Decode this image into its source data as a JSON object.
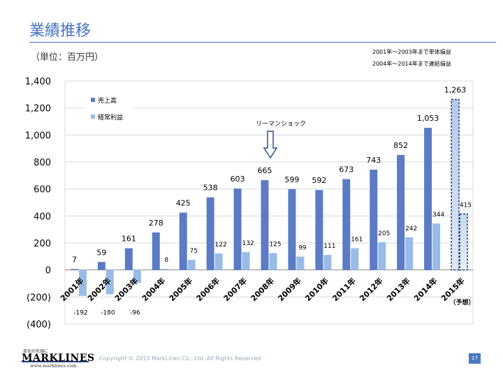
{
  "page": {
    "title": "業績推移",
    "unit_label": "（単位：百万円）",
    "notes": [
      "2001年～2003年まで単体損益",
      "2004年～2014年まで連結損益"
    ],
    "logo_tagline": "変化の先頭に",
    "logo_text": "MARKLINES",
    "logo_url": "www.marklines.com",
    "copyright": "Copyright © 2015 MarkLines Co., Ltd. All Rights Reserved",
    "page_number": "27"
  },
  "colors": {
    "sales": "#5b7bc6",
    "profit": "#99bbe8",
    "title": "#4472c4",
    "forecast_border": "#1f3f7a"
  },
  "chart_data": {
    "type": "bar",
    "title": "",
    "categories": [
      "2001年",
      "2002年",
      "2003年",
      "2004年",
      "2005年",
      "2006年",
      "2007年",
      "2008年",
      "2009年",
      "2010年",
      "2011年",
      "2012年",
      "2013年",
      "2014年",
      "2015年"
    ],
    "series": [
      {
        "name": "売上高",
        "values": [
          7,
          59,
          161,
          278,
          425,
          538,
          603,
          665,
          599,
          592,
          673,
          743,
          852,
          1053,
          1263
        ],
        "labels": [
          "7",
          "59",
          "161",
          "278",
          "425",
          "538",
          "603",
          "665",
          "599",
          "592",
          "673",
          "743",
          "852",
          "1,053",
          "1,263"
        ]
      },
      {
        "name": "経常利益",
        "values": [
          -192,
          -180,
          -96,
          8,
          75,
          122,
          132,
          125,
          99,
          111,
          161,
          205,
          242,
          344,
          415
        ],
        "labels": [
          "-192",
          "-180",
          "-96",
          "8",
          "75",
          "122",
          "132",
          "125",
          "99",
          "111",
          "161",
          "205",
          "242",
          "344",
          "415"
        ]
      }
    ],
    "forecast_label": "（予想）",
    "annotation": "リーマンショック",
    "annotation_category": "2008年",
    "y_ticks": [
      "1,400",
      "1,200",
      "1,000",
      "800",
      "600",
      "400",
      "200",
      "0",
      "(200)",
      "(400)"
    ],
    "y_tick_values": [
      1400,
      1200,
      1000,
      800,
      600,
      400,
      200,
      0,
      -200,
      -400
    ],
    "ylim": [
      -400,
      1400
    ],
    "grid": true,
    "legend_position": "top-left"
  }
}
